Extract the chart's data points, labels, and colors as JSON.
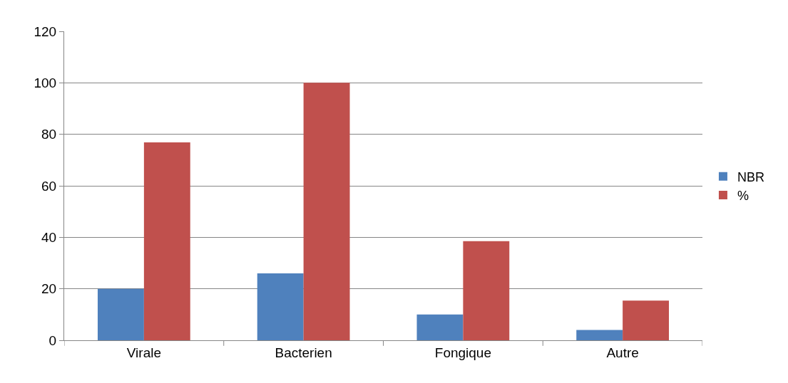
{
  "chart_data": {
    "type": "bar",
    "categories": [
      "Virale",
      "Bacterien",
      "Fongique",
      "Autre"
    ],
    "series": [
      {
        "name": "NBR",
        "color": "#4f81bd",
        "values": [
          20,
          26,
          10,
          4
        ]
      },
      {
        "name": "%",
        "color": "#c0504d",
        "values": [
          76.9,
          100,
          38.5,
          15.4
        ]
      }
    ],
    "ylim": [
      0,
      120
    ],
    "yticks": [
      0,
      20,
      40,
      60,
      80,
      100,
      120
    ],
    "grid": "y",
    "legend": "right"
  }
}
